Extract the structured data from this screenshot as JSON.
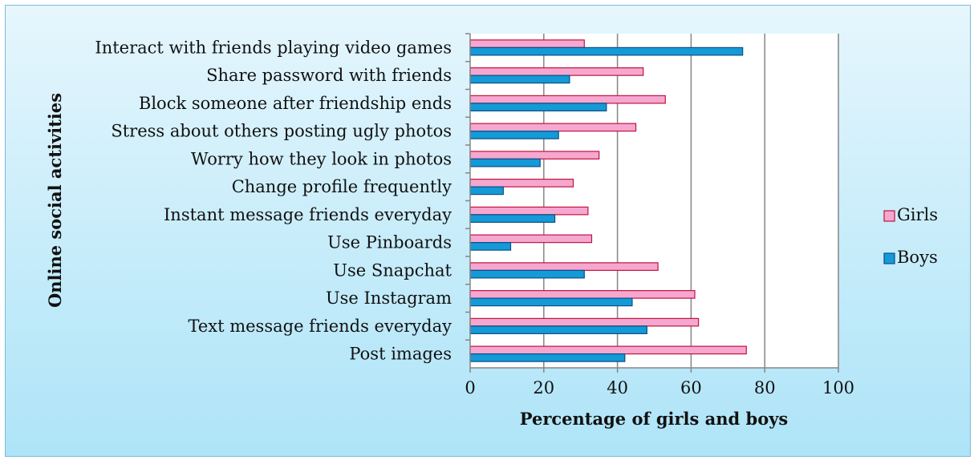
{
  "chart_data": {
    "type": "bar",
    "orientation": "horizontal",
    "title": "",
    "xlabel": "Percentage of girls and boys",
    "ylabel": "Online social activities",
    "xlim": [
      0,
      100
    ],
    "xticks": [
      0,
      20,
      40,
      60,
      80,
      100
    ],
    "grid": "vertical",
    "legend_position": "right",
    "categories": [
      "Post images",
      "Text message friends everyday",
      "Use Instagram",
      "Use Snapchat",
      "Use Pinboards",
      "Instant message friends everyday",
      "Change profile frequently",
      "Worry how they look in photos",
      "Stress about others posting ugly photos",
      "Block someone after friendship ends",
      "Share password with friends",
      "Interact with friends playing video games"
    ],
    "series": [
      {
        "name": "Girls",
        "color": "#f6a7d0",
        "edge_color": "#c0143c",
        "values": [
          75,
          62,
          61,
          51,
          33,
          32,
          28,
          35,
          45,
          53,
          47,
          31
        ]
      },
      {
        "name": "Boys",
        "color": "#149ad6",
        "edge_color": "#0a4f88",
        "values": [
          42,
          48,
          44,
          31,
          11,
          23,
          9,
          19,
          24,
          37,
          27,
          74
        ]
      }
    ]
  }
}
